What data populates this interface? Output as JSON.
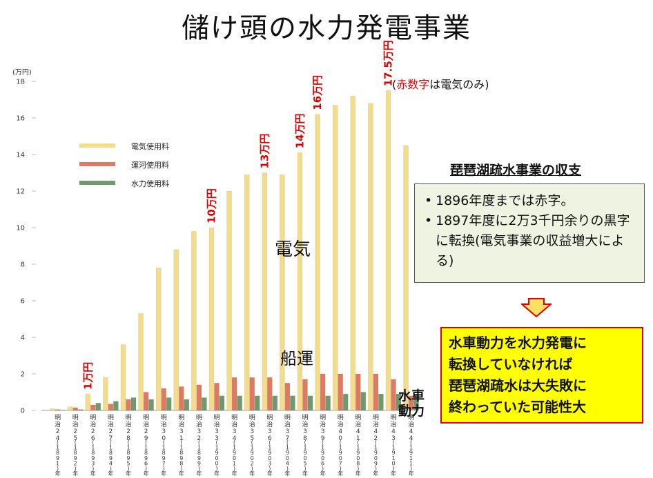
{
  "title": "儲け頭の水力発電事業",
  "chart_data": {
    "type": "bar",
    "unit_label": "(万円)",
    "ylim": [
      0,
      18
    ],
    "yticks": [
      0,
      2,
      4,
      6,
      8,
      10,
      12,
      14,
      16,
      18
    ],
    "categories": [
      {
        "era": "明治24",
        "year": "1891"
      },
      {
        "era": "明治25",
        "year": "1892"
      },
      {
        "era": "明治26",
        "year": "1893"
      },
      {
        "era": "明治27",
        "year": "1894"
      },
      {
        "era": "明治28",
        "year": "1895"
      },
      {
        "era": "明治29",
        "year": "1896"
      },
      {
        "era": "明治30",
        "year": "1897"
      },
      {
        "era": "明治31",
        "year": "1898"
      },
      {
        "era": "明治32",
        "year": "1899"
      },
      {
        "era": "明治33",
        "year": "1900"
      },
      {
        "era": "明治34",
        "year": "1901"
      },
      {
        "era": "明治35",
        "year": "1902"
      },
      {
        "era": "明治36",
        "year": "1903"
      },
      {
        "era": "明治37",
        "year": "1904"
      },
      {
        "era": "明治38",
        "year": "1905"
      },
      {
        "era": "明治39",
        "year": "1906"
      },
      {
        "era": "明治40",
        "year": "1907"
      },
      {
        "era": "明治41",
        "year": "1908"
      },
      {
        "era": "明治42",
        "year": "1909"
      },
      {
        "era": "明治43",
        "year": "1910"
      },
      {
        "era": "明治44",
        "year": "1911"
      }
    ],
    "year_suffix": "年",
    "series": [
      {
        "name": "電気使用料",
        "color": "#f3dc8c",
        "values": [
          0.1,
          0.2,
          0.9,
          1.8,
          3.6,
          5.3,
          7.8,
          8.8,
          9.8,
          10.0,
          12.0,
          12.9,
          13.0,
          12.9,
          14.1,
          16.2,
          16.7,
          17.2,
          16.8,
          17.5,
          14.5
        ]
      },
      {
        "name": "運河使用料",
        "color": "#de7a60",
        "values": [
          0.05,
          0.15,
          0.3,
          0.35,
          0.6,
          1.0,
          1.2,
          1.3,
          1.4,
          1.5,
          1.8,
          1.8,
          1.8,
          1.5,
          1.7,
          2.0,
          2.0,
          2.0,
          2.0,
          1.7,
          0.8
        ]
      },
      {
        "name": "水力使用料",
        "color": "#6e9a6c",
        "values": [
          0.02,
          0.05,
          0.4,
          0.5,
          0.7,
          0.6,
          0.7,
          0.6,
          0.7,
          0.8,
          0.8,
          0.8,
          0.8,
          0.8,
          0.8,
          0.8,
          0.9,
          1.0,
          0.9,
          0.9,
          0.9
        ]
      }
    ],
    "data_labels": [
      {
        "index": 2,
        "text": "1万円"
      },
      {
        "index": 9,
        "text": "10万円"
      },
      {
        "index": 12,
        "text": "13万円"
      },
      {
        "index": 14,
        "text": "14万円"
      },
      {
        "index": 15,
        "text": "16万円"
      },
      {
        "index": 19,
        "text": "17.5万円"
      }
    ],
    "legend_position": "top-left",
    "label_color": "#e00000",
    "annotations": {
      "electricity": "電気",
      "shipping": "船運",
      "waterwheel_line1": "水車",
      "waterwheel_line2": "動力"
    }
  },
  "red_note": {
    "open": "(",
    "red_part": "赤数字",
    "rest": "は電気のみ)"
  },
  "panel": {
    "title": "琵琶湖疏水事業の収支",
    "bullets": [
      "1896年度までは赤字。",
      "1897年度に2万3千円余りの黒字に転換(電気事業の収益増大による)"
    ],
    "bullet_char": "•",
    "conclusion_lines": [
      "水車動力を水力発電に",
      "転換していなければ",
      "琵琶湖疏水は大失敗に",
      "終わっていた可能性大"
    ]
  },
  "colors": {
    "arrow_fill": "#ffe066",
    "arrow_stroke": "#e00000",
    "panel_bg": "#eef3e2",
    "conclusion_bg": "#ffff00",
    "conclusion_border": "#e00000"
  }
}
